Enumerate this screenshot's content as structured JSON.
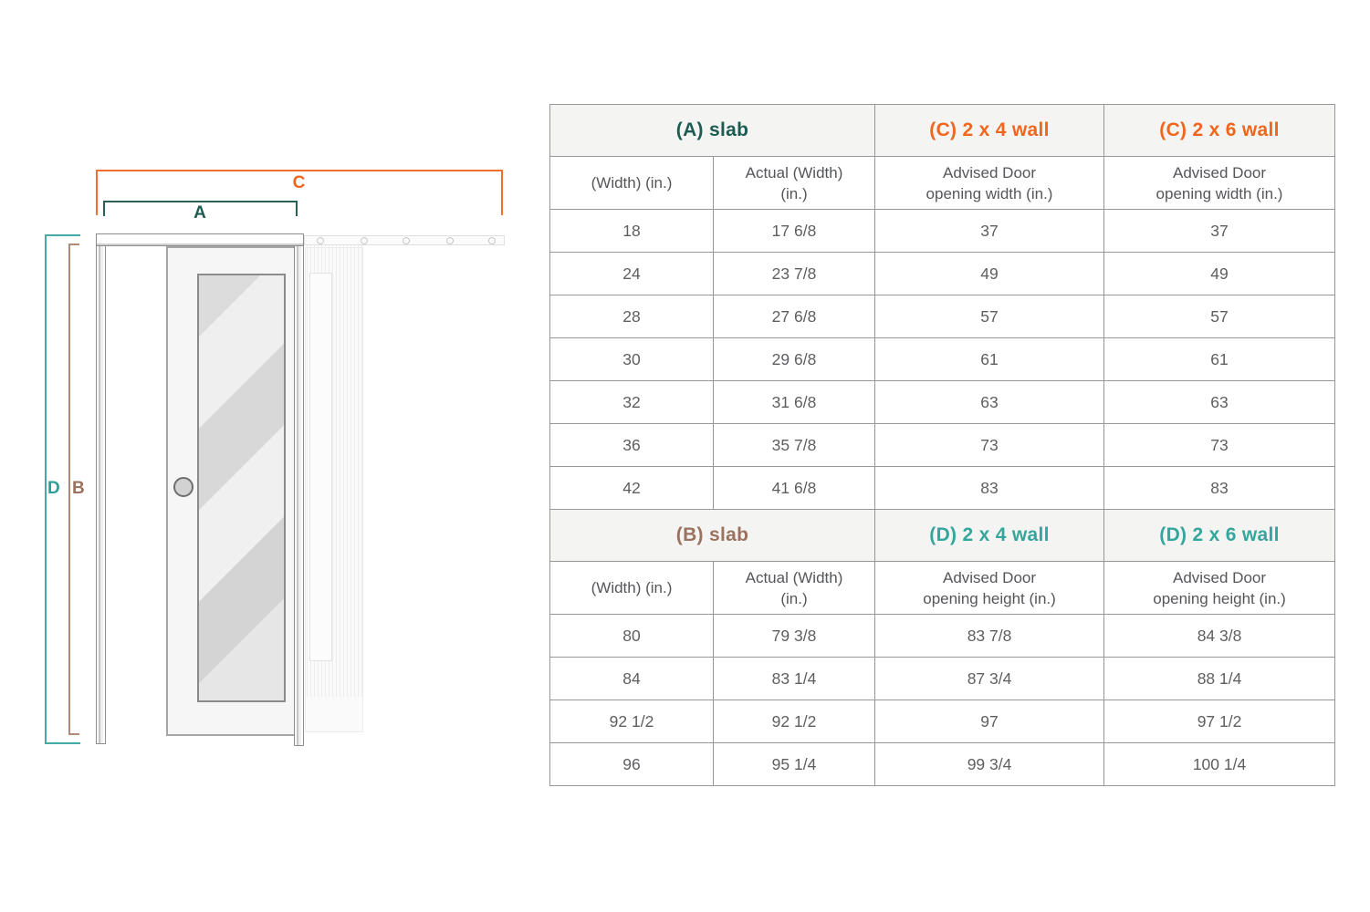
{
  "diagram": {
    "labels": {
      "a": "A",
      "b": "B",
      "c": "C",
      "d": "D"
    }
  },
  "colors": {
    "section_a_slab": "#1d5c52",
    "section_b_slab": "#9b7160",
    "section_c_wall": "#f1661d",
    "section_d_wall": "#35a69d"
  },
  "table": {
    "section_a": {
      "slab_title": "(A) slab",
      "wall_2x4_title": "(C) 2 x 4 wall",
      "wall_2x6_title": "(C) 2 x 6 wall",
      "headers": [
        "(Width) (in.)",
        "Actual (Width)\n(in.)",
        "Advised Door\nopening width (in.)",
        "Advised Door\nopening width (in.)"
      ],
      "rows": [
        [
          "18",
          "17 6/8",
          "37",
          "37"
        ],
        [
          "24",
          "23 7/8",
          "49",
          "49"
        ],
        [
          "28",
          "27 6/8",
          "57",
          "57"
        ],
        [
          "30",
          "29 6/8",
          "61",
          "61"
        ],
        [
          "32",
          "31 6/8",
          "63",
          "63"
        ],
        [
          "36",
          "35 7/8",
          "73",
          "73"
        ],
        [
          "42",
          "41 6/8",
          "83",
          "83"
        ]
      ]
    },
    "section_b": {
      "slab_title": "(B) slab",
      "wall_2x4_title": "(D) 2 x 4 wall",
      "wall_2x6_title": "(D) 2 x 6 wall",
      "headers": [
        "(Width) (in.)",
        "Actual (Width)\n(in.)",
        "Advised Door\nopening height (in.)",
        "Advised Door\nopening height (in.)"
      ],
      "rows": [
        [
          "80",
          "79 3/8",
          "83 7/8",
          "84 3/8"
        ],
        [
          "84",
          "83 1/4",
          "87 3/4",
          "88 1/4"
        ],
        [
          "92 1/2",
          "92 1/2",
          "97",
          "97 1/2"
        ],
        [
          "96",
          "95 1/4",
          "99 3/4",
          "100 1/4"
        ]
      ]
    }
  }
}
